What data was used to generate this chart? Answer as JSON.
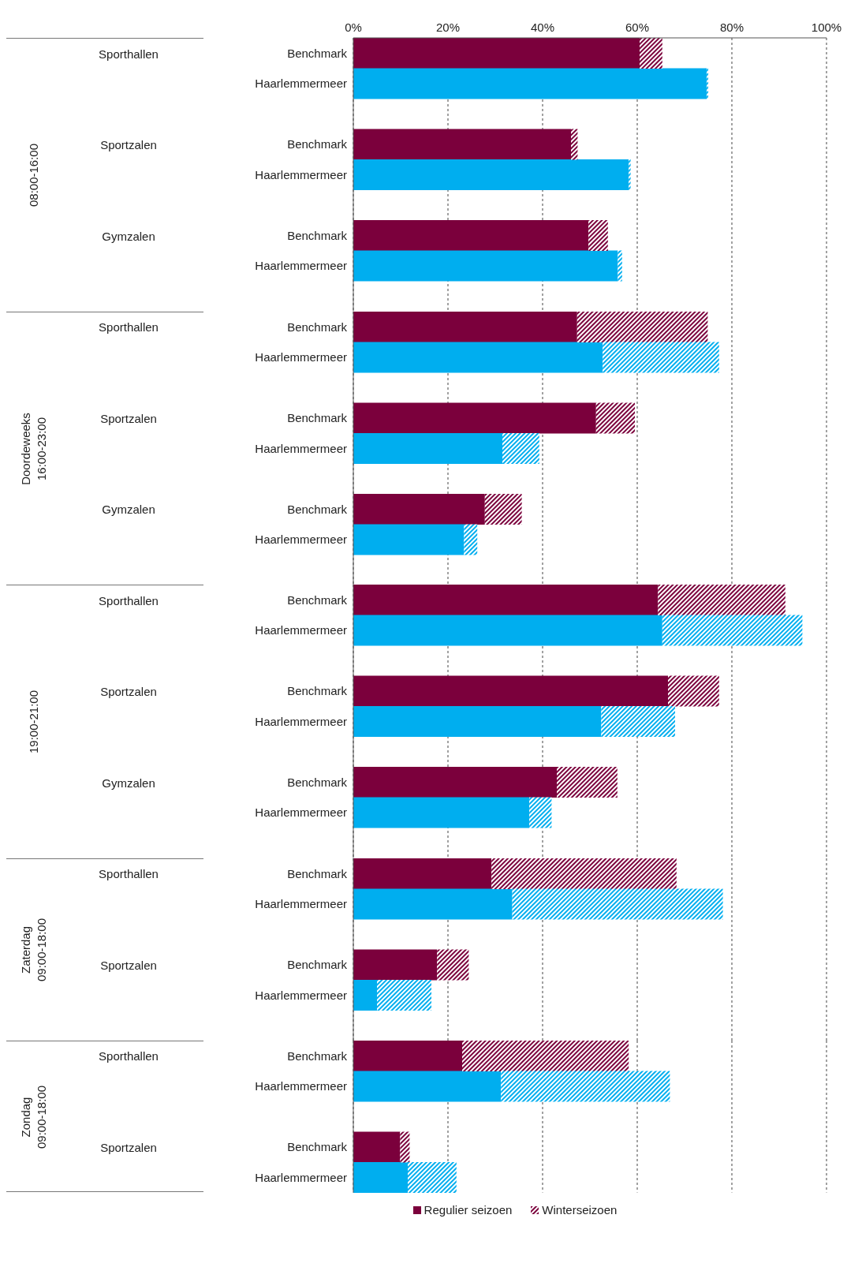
{
  "chart_data": [
    {
      "type": "bar",
      "orientation": "horizontal",
      "stacked": true,
      "ylabel": "08:00-16:00",
      "grid": "x",
      "xlim": [
        0,
        100
      ],
      "xticks": [
        {
          "value": 0,
          "label": "0%"
        },
        {
          "value": 20,
          "label": "20%"
        },
        {
          "value": 40,
          "label": "40%"
        },
        {
          "value": 60,
          "label": "60%"
        },
        {
          "value": 80,
          "label": "80%"
        },
        {
          "value": 100,
          "label": "100%"
        }
      ],
      "categories": [
        "Benchmark",
        "Haarlemmermeer",
        null,
        "Benchmark",
        "Haarlemmermeer",
        null,
        "Benchmark",
        "Haarlemmermeer",
        null
      ],
      "y2_categories": [
        "Sporthallen",
        null,
        null,
        "Sportzalen",
        null,
        null,
        "Gymzalen",
        null,
        null
      ],
      "series": [
        {
          "colors": [
            "#7b003c",
            "#00aeef",
            null,
            "#7b003c",
            "#00aeef",
            null,
            "#7b003c",
            "#00aeef",
            null
          ],
          "values": [
            60.5,
            74.7,
            null,
            46.0,
            58.2,
            null,
            49.7,
            55.9,
            null
          ]
        },
        {
          "colors": [
            "#7b003c",
            "#00aeef",
            null,
            "#7b003c",
            "#00aeef",
            null,
            "#7b003c",
            "#00aeef",
            null
          ],
          "values": [
            4.8,
            0.3,
            null,
            1.4,
            0.4,
            null,
            4.1,
            0.9,
            null
          ]
        }
      ]
    },
    {
      "type": "bar",
      "orientation": "horizontal",
      "stacked": true,
      "ylabel": "Doordeweeks\n16:00-23:00",
      "grid": "x",
      "tick_labels": "y",
      "xlim": [
        0,
        100
      ],
      "xticks": [
        0,
        20,
        40,
        60,
        80,
        100
      ],
      "categories": [
        "Benchmark",
        "Haarlemmermeer",
        null,
        "Benchmark",
        "Haarlemmermeer",
        null,
        "Benchmark",
        "Haarlemmermeer",
        null
      ],
      "y2_categories": [
        "Sporthallen",
        null,
        null,
        "Sportzalen",
        null,
        null,
        "Gymzalen",
        null,
        null
      ],
      "series": [
        {
          "colors": [
            "#7b003c",
            "#00aeef",
            null,
            "#7b003c",
            "#00aeef",
            null,
            "#7b003c",
            "#00aeef",
            null
          ],
          "values": [
            47.3,
            52.7,
            null,
            51.3,
            31.5,
            null,
            27.8,
            23.4,
            null
          ]
        },
        {
          "colors": [
            "#7b003c",
            "#00aeef",
            null,
            "#7b003c",
            "#00aeef",
            null,
            "#7b003c",
            "#00aeef",
            null
          ],
          "values": [
            27.6,
            24.6,
            null,
            8.2,
            7.8,
            null,
            7.8,
            2.8,
            null
          ]
        }
      ]
    },
    {
      "type": "bar",
      "orientation": "horizontal",
      "stacked": true,
      "ylabel": "19:00-21:00",
      "grid": "x",
      "tick_labels": "y",
      "xlim": [
        0,
        100
      ],
      "xticks": [
        0,
        20,
        40,
        60,
        80,
        100
      ],
      "categories": [
        "Benchmark",
        "Haarlemmermeer",
        null,
        "Benchmark",
        "Haarlemmermeer",
        null,
        "Benchmark",
        "Haarlemmermeer",
        null
      ],
      "y2_categories": [
        "Sporthallen",
        null,
        null,
        "Sportzalen",
        null,
        null,
        "Gymzalen",
        null,
        null
      ],
      "series": [
        {
          "colors": [
            "#7b003c",
            "#00aeef",
            null,
            "#7b003c",
            "#00aeef",
            null,
            "#7b003c",
            "#00aeef",
            null
          ],
          "values": [
            64.4,
            65.3,
            null,
            66.5,
            52.4,
            null,
            43.0,
            37.2,
            null
          ]
        },
        {
          "colors": [
            "#7b003c",
            "#00aeef",
            null,
            "#7b003c",
            "#00aeef",
            null,
            "#7b003c",
            "#00aeef",
            null
          ],
          "values": [
            26.9,
            29.6,
            null,
            10.8,
            15.6,
            null,
            12.8,
            4.7,
            null
          ]
        }
      ]
    },
    {
      "type": "bar",
      "orientation": "horizontal",
      "stacked": true,
      "ylabel": "Zaterdag\n09:00-18:00",
      "grid": "x",
      "tick_labels": "y",
      "xlim": [
        0,
        100
      ],
      "xticks": [
        0,
        20,
        40,
        60,
        80,
        100
      ],
      "categories": [
        "Benchmark",
        "Haarlemmermeer",
        null,
        "Benchmark",
        "Haarlemmermeer",
        null
      ],
      "y2_categories": [
        "Sporthallen",
        null,
        null,
        "Sportzalen",
        null,
        null
      ],
      "series": [
        {
          "colors": [
            "#7b003c",
            "#00aeef",
            null,
            "#7b003c",
            "#00aeef",
            null
          ],
          "values": [
            29.2,
            33.6,
            null,
            17.7,
            5.0,
            null
          ]
        },
        {
          "colors": [
            "#7b003c",
            "#00aeef",
            null,
            "#7b003c",
            "#00aeef",
            null
          ],
          "values": [
            39.1,
            44.5,
            null,
            6.7,
            11.5,
            null
          ]
        }
      ]
    },
    {
      "type": "bar",
      "orientation": "horizontal",
      "stacked": true,
      "ylabel": "Zondag\n09:00-18:00",
      "grid": "x",
      "tick_labels": "y",
      "legend": "bottom",
      "xlim": [
        0,
        100
      ],
      "xticks": [
        0,
        20,
        40,
        60,
        80,
        100
      ],
      "categories": [
        "Benchmark",
        "Haarlemmermeer",
        null,
        "Benchmark",
        "Haarlemmermeer"
      ],
      "y2_categories": [
        "Sporthallen",
        null,
        null,
        "Sportzalen",
        null
      ],
      "series": [
        {
          "name": "Regulier seizoen",
          "colors": [
            "#7b003c",
            "#00aeef",
            null,
            "#7b003c",
            "#00aeef"
          ],
          "values": [
            23.0,
            31.2,
            null,
            9.9,
            11.5
          ]
        },
        {
          "name": "Winterseizoen",
          "colors": [
            "#7b003c",
            "#00aeef",
            null,
            "#7b003c",
            "#00aeef"
          ],
          "values": [
            35.2,
            35.7,
            null,
            2.0,
            10.3
          ]
        }
      ]
    }
  ]
}
